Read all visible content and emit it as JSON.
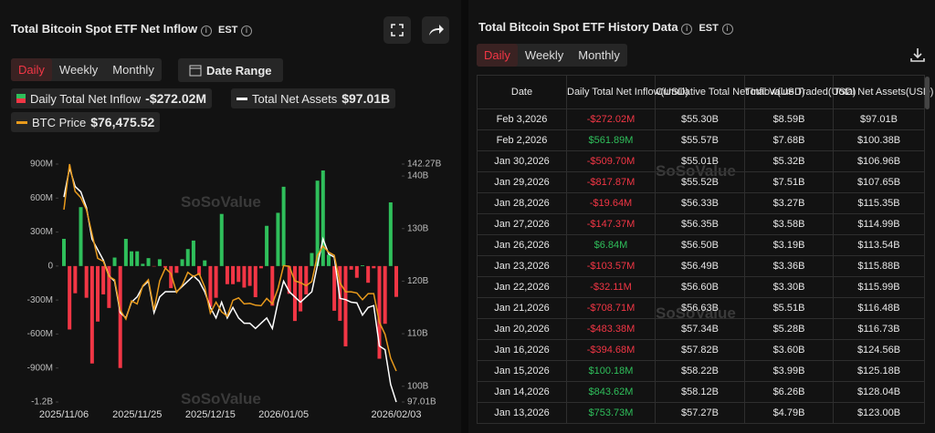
{
  "header": {
    "title": "Total Bitcoin Spot ETF Net Inflow",
    "timezone": "EST"
  },
  "tabs": [
    "Daily",
    "Weekly",
    "Monthly"
  ],
  "date_range": "Date Range",
  "watermark": "SoSoValue",
  "chart_data": {
    "type": "bar",
    "categories": [
      "2025/11/06",
      null,
      null,
      null,
      null,
      null,
      null,
      null,
      null,
      null,
      null,
      null,
      null,
      "2025/11/25",
      null,
      null,
      null,
      null,
      null,
      null,
      null,
      null,
      null,
      null,
      null,
      null,
      "2025/12/15",
      null,
      null,
      null,
      null,
      null,
      null,
      null,
      null,
      null,
      null,
      null,
      null,
      "2026/01/05",
      null,
      null,
      null,
      null,
      null,
      null,
      null,
      null,
      null,
      null,
      null,
      null,
      null,
      null,
      null,
      null,
      null,
      null,
      null,
      "2026/02/03"
    ],
    "ylim": [
      -1200,
      900
    ],
    "yticks": [
      {
        "value": -1200,
        "label": "-1.2B"
      },
      {
        "value": -900,
        "label": "-900M"
      },
      {
        "value": -600,
        "label": "-600M"
      },
      {
        "value": -300,
        "label": "-300M"
      },
      0,
      {
        "value": 300,
        "label": "300M"
      },
      {
        "value": 600,
        "label": "600M"
      },
      {
        "value": 900,
        "label": "900M"
      }
    ],
    "y2lim": [
      97.01,
      142.27
    ],
    "y2ticks": [
      {
        "value": 97.01,
        "label": "97.01B"
      },
      {
        "value": 100,
        "label": "100B"
      },
      {
        "value": 110,
        "label": "110B"
      },
      {
        "value": 120,
        "label": "120B"
      },
      {
        "value": 130,
        "label": "130B"
      },
      {
        "value": 140,
        "label": "140B"
      },
      {
        "value": 142.27,
        "label": "142.27B"
      }
    ],
    "grid": false,
    "series": [
      {
        "name": "Daily Total Net Inflow",
        "type": "bar",
        "latest": "-$272.02M",
        "positive_color": "#2fbf5b",
        "negative_color": "#f23645",
        "values": [
          240,
          -560,
          -240,
          520,
          -280,
          -860,
          -490,
          -250,
          -370,
          75,
          -900,
          240,
          130,
          130,
          20,
          70,
          -3,
          60,
          -15,
          -195,
          -60,
          60,
          150,
          225,
          -80,
          50,
          -360,
          -280,
          460,
          -160,
          -160,
          -140,
          -190,
          -175,
          -275,
          -20,
          355,
          -350,
          470,
          700,
          -245,
          -485,
          -400,
          -250,
          115,
          753.73,
          843.62,
          100.18,
          -394.68,
          -483.38,
          -708.71,
          -32.11,
          -103.57,
          6.84,
          -147.37,
          -19.64,
          -817.87,
          -509.7,
          561.89,
          -272.02
        ]
      },
      {
        "name": "Total Net Assets",
        "type": "line",
        "axis": "y2",
        "latest": "$97.01B",
        "color": "#ffffff",
        "values": [
          136,
          141.5,
          138,
          137,
          134,
          128,
          126,
          124,
          121,
          120,
          114,
          113,
          116,
          117,
          119,
          120,
          114,
          117,
          118,
          118,
          118,
          119,
          120,
          121,
          120,
          118,
          115,
          113,
          116,
          113,
          115,
          113,
          112,
          112,
          111,
          112,
          113,
          111,
          116,
          120,
          118,
          117,
          116,
          117,
          118,
          123,
          128.04,
          125.18,
          124.56,
          116.73,
          116.48,
          115.99,
          115.88,
          113.54,
          114.99,
          115.35,
          107.65,
          106.96,
          100.38,
          97.01
        ]
      },
      {
        "name": "BTC Price",
        "type": "line",
        "latest": "$76,475.52",
        "color": "#e89a1c",
        "values": [
          103000,
          110500,
          106000,
          105000,
          103000,
          99000,
          95000,
          94500,
          92000,
          91500,
          86500,
          85000,
          88000,
          87500,
          90500,
          91500,
          86500,
          91300,
          93400,
          92500,
          89400,
          90600,
          92700,
          92000,
          92500,
          90300,
          86000,
          87800,
          86200,
          85500,
          88100,
          88500,
          87500,
          87600,
          87300,
          87200,
          88400,
          87500,
          90000,
          93800,
          93700,
          91300,
          91000,
          90500,
          91200,
          95500,
          97000,
          96000,
          95500,
          91000,
          89500,
          89500,
          89300,
          88200,
          89200,
          89200,
          84500,
          82500,
          78600,
          76475.52
        ]
      }
    ]
  },
  "table": {
    "title": "Total Bitcoin Spot ETF History Data",
    "timezone": "EST",
    "tabs": [
      "Daily",
      "Weekly",
      "Monthly"
    ],
    "columns": [
      "Date",
      "Daily Total Net Inflow(USD)",
      "Cumulative Total Net Inflow(USD)",
      "Total Value Traded(USD)",
      "Total Net Assets(USD)"
    ],
    "rows": [
      [
        "Feb 3,2026",
        "-$272.02M",
        "$55.30B",
        "$8.59B",
        "$97.01B"
      ],
      [
        "Feb 2,2026",
        "$561.89M",
        "$55.57B",
        "$7.68B",
        "$100.38B"
      ],
      [
        "Jan 30,2026",
        "-$509.70M",
        "$55.01B",
        "$5.32B",
        "$106.96B"
      ],
      [
        "Jan 29,2026",
        "-$817.87M",
        "$55.52B",
        "$7.51B",
        "$107.65B"
      ],
      [
        "Jan 28,2026",
        "-$19.64M",
        "$56.33B",
        "$3.27B",
        "$115.35B"
      ],
      [
        "Jan 27,2026",
        "-$147.37M",
        "$56.35B",
        "$3.58B",
        "$114.99B"
      ],
      [
        "Jan 26,2026",
        "$6.84M",
        "$56.50B",
        "$3.19B",
        "$113.54B"
      ],
      [
        "Jan 23,2026",
        "-$103.57M",
        "$56.49B",
        "$3.36B",
        "$115.88B"
      ],
      [
        "Jan 22,2026",
        "-$32.11M",
        "$56.60B",
        "$3.30B",
        "$115.99B"
      ],
      [
        "Jan 21,2026",
        "-$708.71M",
        "$56.63B",
        "$5.51B",
        "$116.48B"
      ],
      [
        "Jan 20,2026",
        "-$483.38M",
        "$57.34B",
        "$5.28B",
        "$116.73B"
      ],
      [
        "Jan 16,2026",
        "-$394.68M",
        "$57.82B",
        "$3.60B",
        "$124.56B"
      ],
      [
        "Jan 15,2026",
        "$100.18M",
        "$58.22B",
        "$3.99B",
        "$125.18B"
      ],
      [
        "Jan 14,2026",
        "$843.62M",
        "$58.12B",
        "$6.26B",
        "$128.04B"
      ],
      [
        "Jan 13,2026",
        "$753.73M",
        "$57.27B",
        "$4.79B",
        "$123.00B"
      ]
    ]
  }
}
